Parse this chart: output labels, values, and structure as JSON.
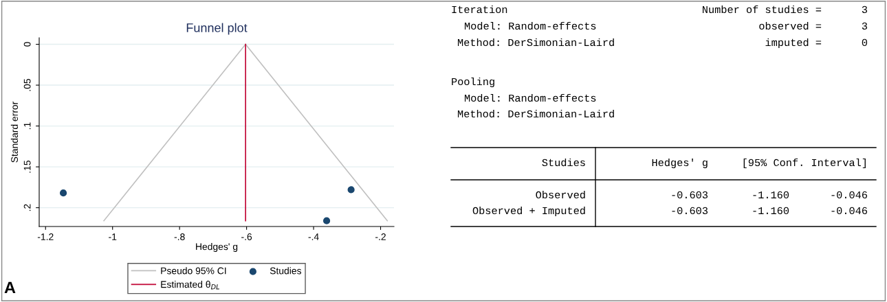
{
  "chart_data": [
    {
      "type": "scatter",
      "title": "Funnel plot",
      "xlabel": "Hedges' g",
      "ylabel": "Standard error",
      "xlim": [
        -1.219,
        -0.16
      ],
      "ylim": [
        0.223,
        -0.008
      ],
      "xticks": [
        {
          "value": -1.2,
          "label": "-1.2"
        },
        {
          "value": -1.0,
          "label": "-1"
        },
        {
          "value": -0.8,
          "label": "-.8"
        },
        {
          "value": -0.6,
          "label": "-.6"
        },
        {
          "value": -0.4,
          "label": "-.4"
        },
        {
          "value": -0.2,
          "label": "-.2"
        }
      ],
      "yticks": [
        0,
        {
          "value": 0.05,
          "label": ".05"
        },
        {
          "value": 0.1,
          "label": ".1"
        },
        {
          "value": 0.15,
          "label": ".15"
        },
        {
          "value": 0.2,
          "label": ".2"
        }
      ],
      "grid": "y",
      "legend": "bottom",
      "series": [
        {
          "name": "Pseudo 95% CI",
          "type": "line",
          "color": "#c0c0c0",
          "x": [
            -1.026,
            -0.603,
            -0.18
          ],
          "values": [
            0.216,
            0,
            0.216
          ]
        },
        {
          "name": "Estimated θ$_{DL}$",
          "type": "line",
          "color": "#c10534",
          "x": [
            -0.603,
            -0.603
          ],
          "values": [
            0,
            0.216
          ]
        },
        {
          "name": "Studies",
          "type": "scatter",
          "color": "#1a476f",
          "marker": "circle",
          "x": [
            -1.147,
            -0.288,
            -0.361
          ],
          "values": [
            0.182,
            0.178,
            0.216
          ]
        }
      ],
      "annotations": [
        "A"
      ]
    },
    {
      "type": "other",
      "annotations": [
        "Iteration",
        "Model: Random-effects",
        "Method: DerSimonian-Laird",
        "Number of studies =",
        "3",
        "observed =",
        "3",
        "imputed =",
        "0",
        "Pooling",
        "Model: Random-effects",
        "Method: DerSimonian-Laird",
        "Studies",
        "Hedges' g",
        "[95% Conf. Interval]",
        "Observed",
        "-0.603",
        "-1.160",
        "-0.046",
        "Observed + Imputed",
        "-0.603",
        "-1.160",
        "-0.046"
      ]
    }
  ]
}
